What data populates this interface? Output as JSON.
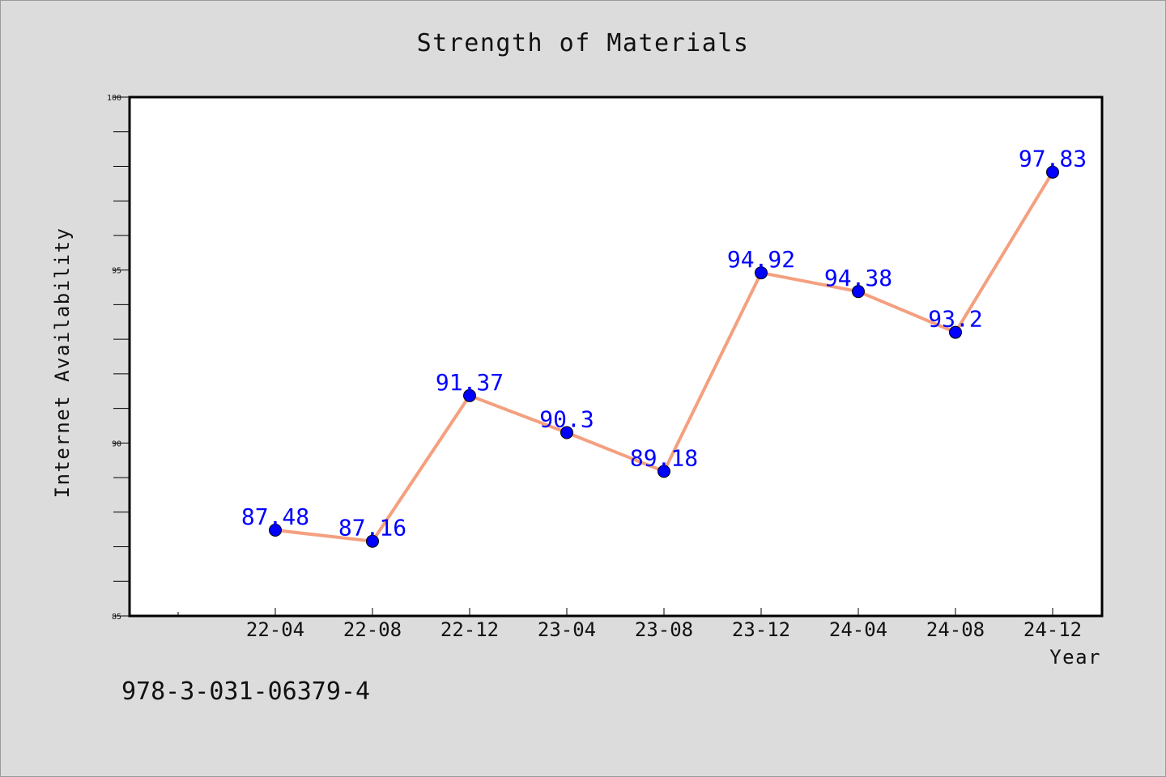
{
  "chart_data": {
    "type": "line",
    "title": "Strength of Materials",
    "xlabel": "Year",
    "ylabel": "Internet Availability",
    "categories": [
      "22-04",
      "22-08",
      "22-12",
      "23-04",
      "23-08",
      "23-12",
      "24-04",
      "24-08",
      "24-12"
    ],
    "series": [
      {
        "values": [
          87.48,
          87.16,
          91.37,
          90.3,
          89.18,
          94.92,
          94.38,
          93.2,
          97.83
        ],
        "labels": [
          "87.48",
          "87.16",
          "91.37",
          "90.3",
          "89.18",
          "94.92",
          "94.38",
          "93.2",
          "97.83"
        ],
        "line_color": "#f4a07f",
        "marker_color": "#0000ff"
      }
    ],
    "yticks": [
      "85",
      "90",
      "95",
      "100"
    ],
    "ylim": [
      85,
      100
    ],
    "grid": false,
    "colors": {
      "background": "#dcdcdc",
      "plot_background": "#ffffff",
      "label_color": "#0000ff"
    }
  },
  "footer": {
    "isbn": "978-3-031-06379-4"
  }
}
